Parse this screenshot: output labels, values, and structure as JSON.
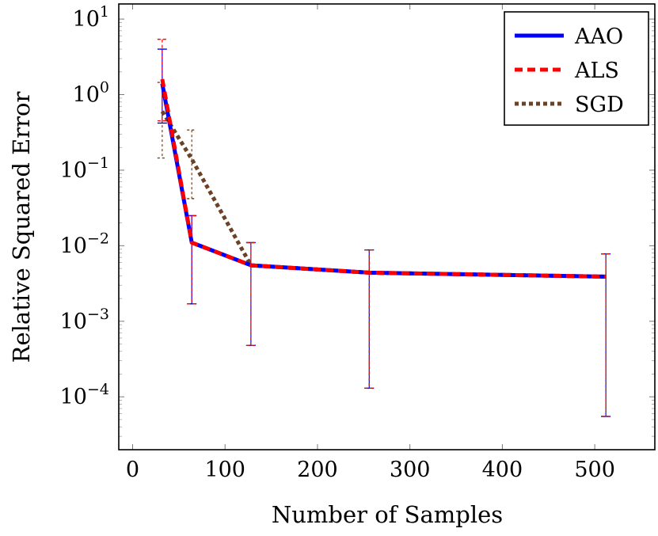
{
  "chart_data": {
    "type": "line",
    "xlabel": "Number of Samples",
    "ylabel": "Relative Squared Error",
    "xlim": [
      -15,
      565
    ],
    "ylim_log10": [
      -4.7,
      1.2
    ],
    "y_scale": "log",
    "grid": false,
    "legend_position": "top-right",
    "x_ticks": [
      {
        "value": 0,
        "label": "0"
      },
      {
        "value": 100,
        "label": "100"
      },
      {
        "value": 200,
        "label": "200"
      },
      {
        "value": 300,
        "label": "300"
      },
      {
        "value": 400,
        "label": "400"
      },
      {
        "value": 500,
        "label": "500"
      }
    ],
    "y_ticks": [
      {
        "exp": 1,
        "base": "10",
        "sup": "1"
      },
      {
        "exp": 0,
        "base": "10",
        "sup": "0"
      },
      {
        "exp": -1,
        "base": "10",
        "sup": "−1"
      },
      {
        "exp": -2,
        "base": "10",
        "sup": "−2"
      },
      {
        "exp": -3,
        "base": "10",
        "sup": "−3"
      },
      {
        "exp": -4,
        "base": "10",
        "sup": "−4"
      }
    ],
    "series": [
      {
        "name": "AAO",
        "color": "#0000ff",
        "dash": "solid",
        "x": [
          32,
          64,
          128,
          256,
          512
        ],
        "y": [
          1.4,
          0.011,
          0.0055,
          0.0044,
          0.0039
        ],
        "err_low": [
          0.42,
          0.0017,
          0.00048,
          0.00013,
          5.5e-05
        ],
        "err_high": [
          4.0,
          0.025,
          0.011,
          0.0088,
          0.0078
        ]
      },
      {
        "name": "ALS",
        "color": "#ff0000",
        "dash": "dashed",
        "x": [
          32,
          64,
          128,
          256,
          512
        ],
        "y": [
          1.6,
          0.011,
          0.0055,
          0.0044,
          0.0039
        ],
        "err_low": [
          0.45,
          0.0017,
          0.00048,
          0.00013,
          5.5e-05
        ],
        "err_high": [
          5.4,
          0.025,
          0.011,
          0.0088,
          0.0078
        ]
      },
      {
        "name": "SGD",
        "color": "#6b4226",
        "dash": "dotted",
        "x": [
          32,
          64,
          128,
          256,
          512
        ],
        "y": [
          0.6,
          0.14,
          0.0055,
          0.0044,
          0.0039
        ],
        "err_low": [
          0.145,
          0.042,
          0.00048,
          0.00013,
          5.5e-05
        ],
        "err_high": [
          1.45,
          0.34,
          0.011,
          0.0088,
          0.0078
        ]
      }
    ]
  }
}
